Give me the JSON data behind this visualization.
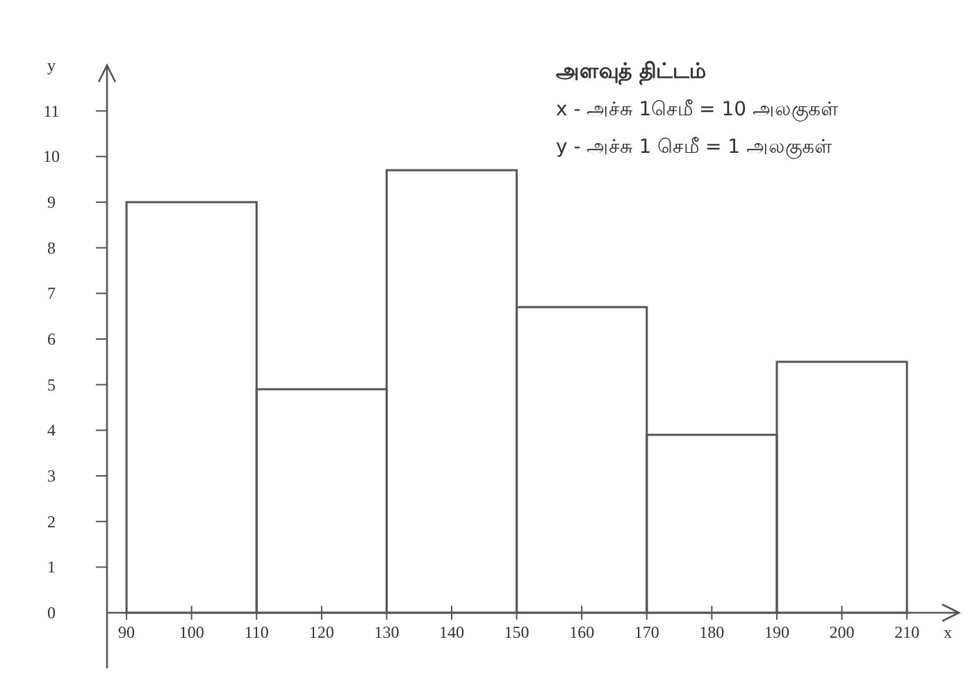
{
  "chart_data": {
    "type": "histogram",
    "xlabel": "x",
    "ylabel": "y",
    "bins": [
      90,
      110,
      130,
      150,
      170,
      190,
      210
    ],
    "values": [
      9,
      4.9,
      9.7,
      6.7,
      3.9,
      5.5
    ],
    "xlim": [
      87,
      218
    ],
    "xticks": [
      90,
      100,
      110,
      120,
      130,
      140,
      150,
      160,
      170,
      180,
      190,
      200,
      210
    ],
    "ylim": [
      0,
      12
    ],
    "yticks": [
      0,
      1,
      2,
      3,
      4,
      5,
      6,
      7,
      8,
      9,
      10,
      11
    ],
    "annotations": [
      "அளவுத் திட்டம்",
      "x - அச்சு 1செமீ = 10 அலகுகள்",
      "y - அச்சு 1 செமீ = 1 அலகுகள்"
    ]
  }
}
